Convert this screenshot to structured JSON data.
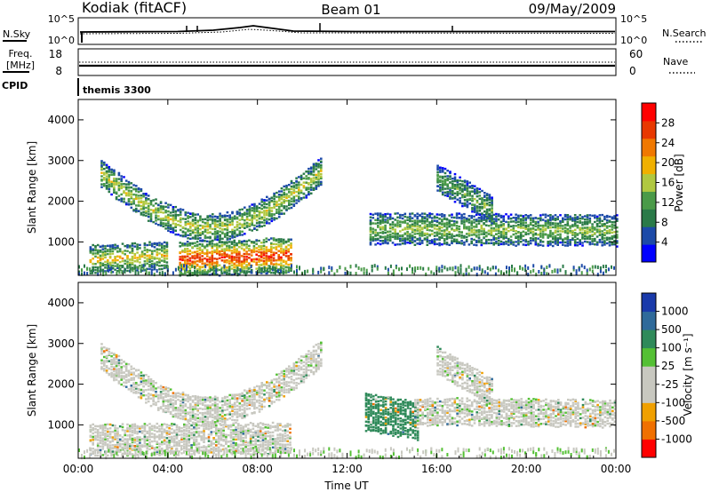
{
  "header": {
    "station": "Kodiak (fitACF)",
    "beam": "Beam 01",
    "date": "09/May/2009"
  },
  "sky_panel": {
    "left_label": "N.Sky",
    "left_ticks": [
      "10^5",
      "10^0"
    ],
    "right_ticks": [
      "10^5",
      "10^0"
    ],
    "right_label": "N.Search"
  },
  "freq_panel": {
    "left_label_line1": "Freq.",
    "left_label_line2": "[MHz]",
    "left_ticks": [
      "18",
      "8"
    ],
    "right_ticks": [
      "60",
      "0"
    ],
    "right_label": "Nave"
  },
  "cpid": {
    "label": "CPID",
    "value": "themis 3300"
  },
  "colors": {
    "power_scale": [
      "#0000ff",
      "#1c4aa8",
      "#2a7a48",
      "#4a9a48",
      "#b0c840",
      "#f0b000",
      "#f07800",
      "#e83800",
      "#ff0000"
    ],
    "velocity_scale": [
      "#1a3aaa",
      "#2f6a9a",
      "#2f8a5a",
      "#54c034",
      "#c8c8c0",
      "#c8c8c0",
      "#f0a000",
      "#f07000",
      "#ff0000"
    ]
  },
  "chart_data": [
    {
      "type": "heatmap",
      "title": "",
      "quantity": "Power",
      "ylabel": "Slant Range [km]",
      "ylim": [
        180,
        4500
      ],
      "yticks": [
        1000,
        2000,
        3000,
        4000
      ],
      "xlabel": "Time UT",
      "xlim": [
        "00:00",
        "24:00"
      ],
      "xticks": [
        "00:00",
        "04:00",
        "08:00",
        "12:00",
        "16:00",
        "20:00",
        "00:00"
      ],
      "colorbar": {
        "label": "Power [dB]",
        "ticks": [
          "28",
          "24",
          "20",
          "16",
          "12",
          "8",
          "4"
        ],
        "range": [
          0,
          30
        ]
      },
      "echo_regions": [
        {
          "start_h": 1.0,
          "end_h": 10.8,
          "center_start_km": 2700,
          "center_end_km": 2750,
          "dip_km": 1350,
          "thickness_km": 300,
          "power_db": 16
        },
        {
          "start_h": 0.5,
          "end_h": 4.0,
          "center_start_km": 600,
          "center_end_km": 700,
          "dip_km": 0,
          "thickness_km": 300,
          "power_db": 18
        },
        {
          "start_h": 4.5,
          "end_h": 9.5,
          "center_start_km": 600,
          "center_end_km": 700,
          "dip_km": 0,
          "thickness_km": 400,
          "power_db": 28
        },
        {
          "start_h": 13.0,
          "end_h": 24.0,
          "center_start_km": 1350,
          "center_end_km": 1300,
          "dip_km": 0,
          "thickness_km": 350,
          "power_db": 14
        },
        {
          "start_h": 16.0,
          "end_h": 18.5,
          "center_start_km": 2600,
          "center_end_km": 1800,
          "dip_km": 0,
          "thickness_km": 300,
          "power_db": 12
        }
      ]
    },
    {
      "type": "heatmap",
      "title": "",
      "quantity": "Velocity",
      "ylabel": "Slant Range [km]",
      "ylim": [
        180,
        4500
      ],
      "yticks": [
        1000,
        2000,
        3000,
        4000
      ],
      "xlabel": "Time UT",
      "xlim": [
        "00:00",
        "24:00"
      ],
      "xticks": [
        "00:00",
        "04:00",
        "08:00",
        "12:00",
        "16:00",
        "20:00",
        "00:00"
      ],
      "colorbar": {
        "label": "Velocity [m s⁻¹]",
        "ticks": [
          "1000",
          "500",
          "100",
          "25",
          "-25",
          "-100",
          "-500",
          "-1000"
        ]
      },
      "echo_regions": [
        {
          "start_h": 1.0,
          "end_h": 10.8,
          "center_start_km": 2700,
          "center_end_km": 2750,
          "dip_km": 1350,
          "thickness_km": 300,
          "velocity_ms": 0
        },
        {
          "start_h": 0.5,
          "end_h": 9.5,
          "center_start_km": 650,
          "center_end_km": 700,
          "dip_km": 0,
          "thickness_km": 350,
          "velocity_ms": 0
        },
        {
          "start_h": 12.8,
          "end_h": 15.2,
          "center_start_km": 1350,
          "center_end_km": 1100,
          "dip_km": 0,
          "thickness_km": 450,
          "velocity_ms": 150
        },
        {
          "start_h": 15.0,
          "end_h": 24.0,
          "center_start_km": 1350,
          "center_end_km": 1300,
          "dip_km": 0,
          "thickness_km": 300,
          "velocity_ms": 0
        },
        {
          "start_h": 16.0,
          "end_h": 18.5,
          "center_start_km": 2600,
          "center_end_km": 1800,
          "dip_km": 0,
          "thickness_km": 300,
          "velocity_ms": 0
        }
      ]
    }
  ]
}
